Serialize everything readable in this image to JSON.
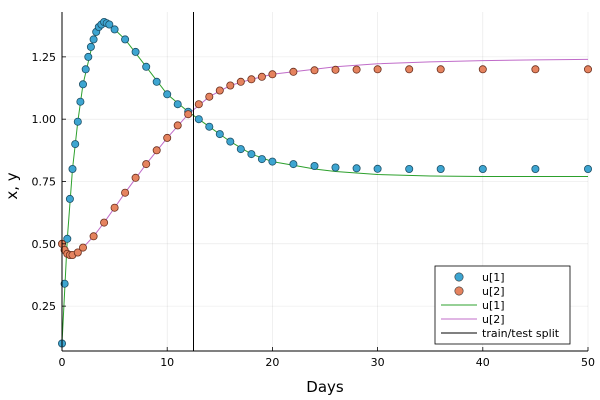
{
  "chart_data": {
    "type": "scatter",
    "title": "",
    "xlabel": "Days",
    "ylabel": "x, y",
    "xlim": [
      0,
      50
    ],
    "ylim": [
      0.07,
      1.43
    ],
    "xticks": [
      0,
      10,
      20,
      30,
      40,
      50
    ],
    "yticks": [
      0.25,
      0.5,
      0.75,
      1.0,
      1.25
    ],
    "xtick_labels": [
      "0",
      "10",
      "20",
      "30",
      "40",
      "50"
    ],
    "ytick_labels": [
      "0.25",
      "0.50",
      "0.75",
      "1.00",
      "1.25"
    ],
    "grid": true,
    "legend_position": "bottom-right",
    "vline": {
      "x": 12.5,
      "name": "train/test split",
      "color": "#000000"
    },
    "scatter_series": [
      {
        "name": "u[1]",
        "color": "#3da5d1",
        "edge": "#1c4f66",
        "x": [
          0,
          0.25,
          0.5,
          0.75,
          1,
          1.25,
          1.5,
          1.75,
          2,
          2.25,
          2.5,
          2.75,
          3,
          3.25,
          3.5,
          3.75,
          4,
          4.25,
          4.5,
          5,
          6,
          7,
          8,
          9,
          10,
          11,
          12,
          13,
          14,
          15,
          16,
          17,
          18,
          19,
          20,
          22,
          24,
          26,
          28,
          30,
          33,
          36,
          40,
          45,
          50
        ],
        "y": [
          0.1,
          0.34,
          0.52,
          0.68,
          0.8,
          0.9,
          0.99,
          1.07,
          1.14,
          1.2,
          1.25,
          1.29,
          1.32,
          1.35,
          1.37,
          1.38,
          1.39,
          1.385,
          1.38,
          1.36,
          1.32,
          1.27,
          1.21,
          1.15,
          1.1,
          1.06,
          1.03,
          1.0,
          0.97,
          0.94,
          0.91,
          0.88,
          0.86,
          0.84,
          0.83,
          0.82,
          0.812,
          0.806,
          0.803,
          0.801,
          0.8,
          0.8,
          0.8,
          0.8,
          0.8
        ]
      },
      {
        "name": "u[2]",
        "color": "#e5835f",
        "edge": "#6a2f1e",
        "x": [
          0,
          0.25,
          0.5,
          0.75,
          1,
          1.5,
          2,
          3,
          4,
          5,
          6,
          7,
          8,
          9,
          10,
          11,
          12,
          13,
          14,
          15,
          16,
          17,
          18,
          19,
          20,
          22,
          24,
          26,
          28,
          30,
          33,
          36,
          40,
          45,
          50
        ],
        "y": [
          0.5,
          0.475,
          0.46,
          0.455,
          0.455,
          0.465,
          0.485,
          0.53,
          0.585,
          0.645,
          0.705,
          0.765,
          0.82,
          0.875,
          0.925,
          0.975,
          1.02,
          1.06,
          1.09,
          1.115,
          1.135,
          1.15,
          1.16,
          1.17,
          1.18,
          1.19,
          1.196,
          1.198,
          1.199,
          1.2,
          1.2,
          1.2,
          1.2,
          1.2,
          1.2
        ]
      }
    ],
    "line_series": [
      {
        "name": "u[1]",
        "color": "#2ca02c",
        "x": [
          0,
          0.5,
          1,
          1.5,
          2,
          3,
          4,
          5,
          6,
          8,
          10,
          12,
          14,
          16,
          18,
          20,
          22,
          24,
          26,
          30,
          35,
          40,
          45,
          50
        ],
        "y": [
          0.1,
          0.52,
          0.8,
          0.99,
          1.14,
          1.32,
          1.39,
          1.36,
          1.32,
          1.21,
          1.1,
          1.03,
          0.97,
          0.91,
          0.86,
          0.83,
          0.815,
          0.8,
          0.79,
          0.778,
          0.772,
          0.77,
          0.77,
          0.77
        ]
      },
      {
        "name": "u[2]",
        "color": "#c06cc9",
        "x": [
          0,
          0.5,
          1,
          1.5,
          2,
          3,
          4,
          5,
          6,
          8,
          10,
          12,
          14,
          16,
          18,
          20,
          22,
          24,
          26,
          30,
          35,
          40,
          45,
          50
        ],
        "y": [
          0.5,
          0.46,
          0.455,
          0.465,
          0.485,
          0.53,
          0.585,
          0.645,
          0.705,
          0.82,
          0.925,
          1.02,
          1.09,
          1.135,
          1.16,
          1.18,
          1.19,
          1.2,
          1.21,
          1.222,
          1.23,
          1.235,
          1.238,
          1.24
        ]
      }
    ],
    "legend": [
      {
        "label": "u[1]",
        "kind": "marker",
        "color": "#3da5d1"
      },
      {
        "label": "u[2]",
        "kind": "marker",
        "color": "#e5835f"
      },
      {
        "label": "u[1]",
        "kind": "line",
        "color": "#2ca02c"
      },
      {
        "label": "u[2]",
        "kind": "line",
        "color": "#c06cc9"
      },
      {
        "label": "train/test split",
        "kind": "line",
        "color": "#000000"
      }
    ]
  }
}
